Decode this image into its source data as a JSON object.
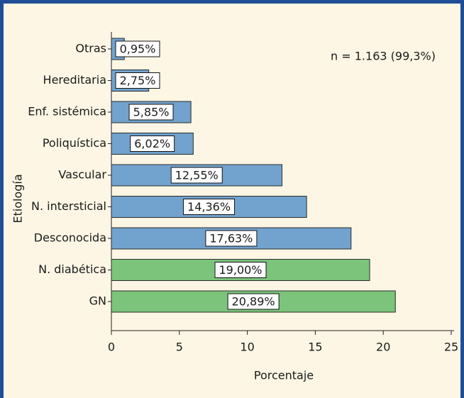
{
  "chart_data": {
    "type": "bar",
    "orientation": "horizontal",
    "categories": [
      "Otras",
      "Hereditaria",
      "Enf. sistémica",
      "Poliquística",
      "Vascular",
      "N. intersticial",
      "Desconocida",
      "N. diabética",
      "GN"
    ],
    "values": [
      0.95,
      2.75,
      5.85,
      6.02,
      12.55,
      14.36,
      17.63,
      19.0,
      20.89
    ],
    "value_labels": [
      "0,95%",
      "2,75%",
      "5,85%",
      "6,02%",
      "12,55%",
      "14,36%",
      "17,63%",
      "19,00%",
      "20,89%"
    ],
    "colors": [
      "#72a3cf",
      "#72a3cf",
      "#72a3cf",
      "#72a3cf",
      "#72a3cf",
      "#72a3cf",
      "#72a3cf",
      "#7cc47c",
      "#7cc47c"
    ],
    "xlim": [
      0,
      25
    ],
    "xticks": [
      0,
      5,
      10,
      15,
      20,
      25
    ],
    "xlabel": "Porcentaje",
    "ylabel": "Etiología",
    "annotation": "n = 1.163 (99,3%)"
  }
}
